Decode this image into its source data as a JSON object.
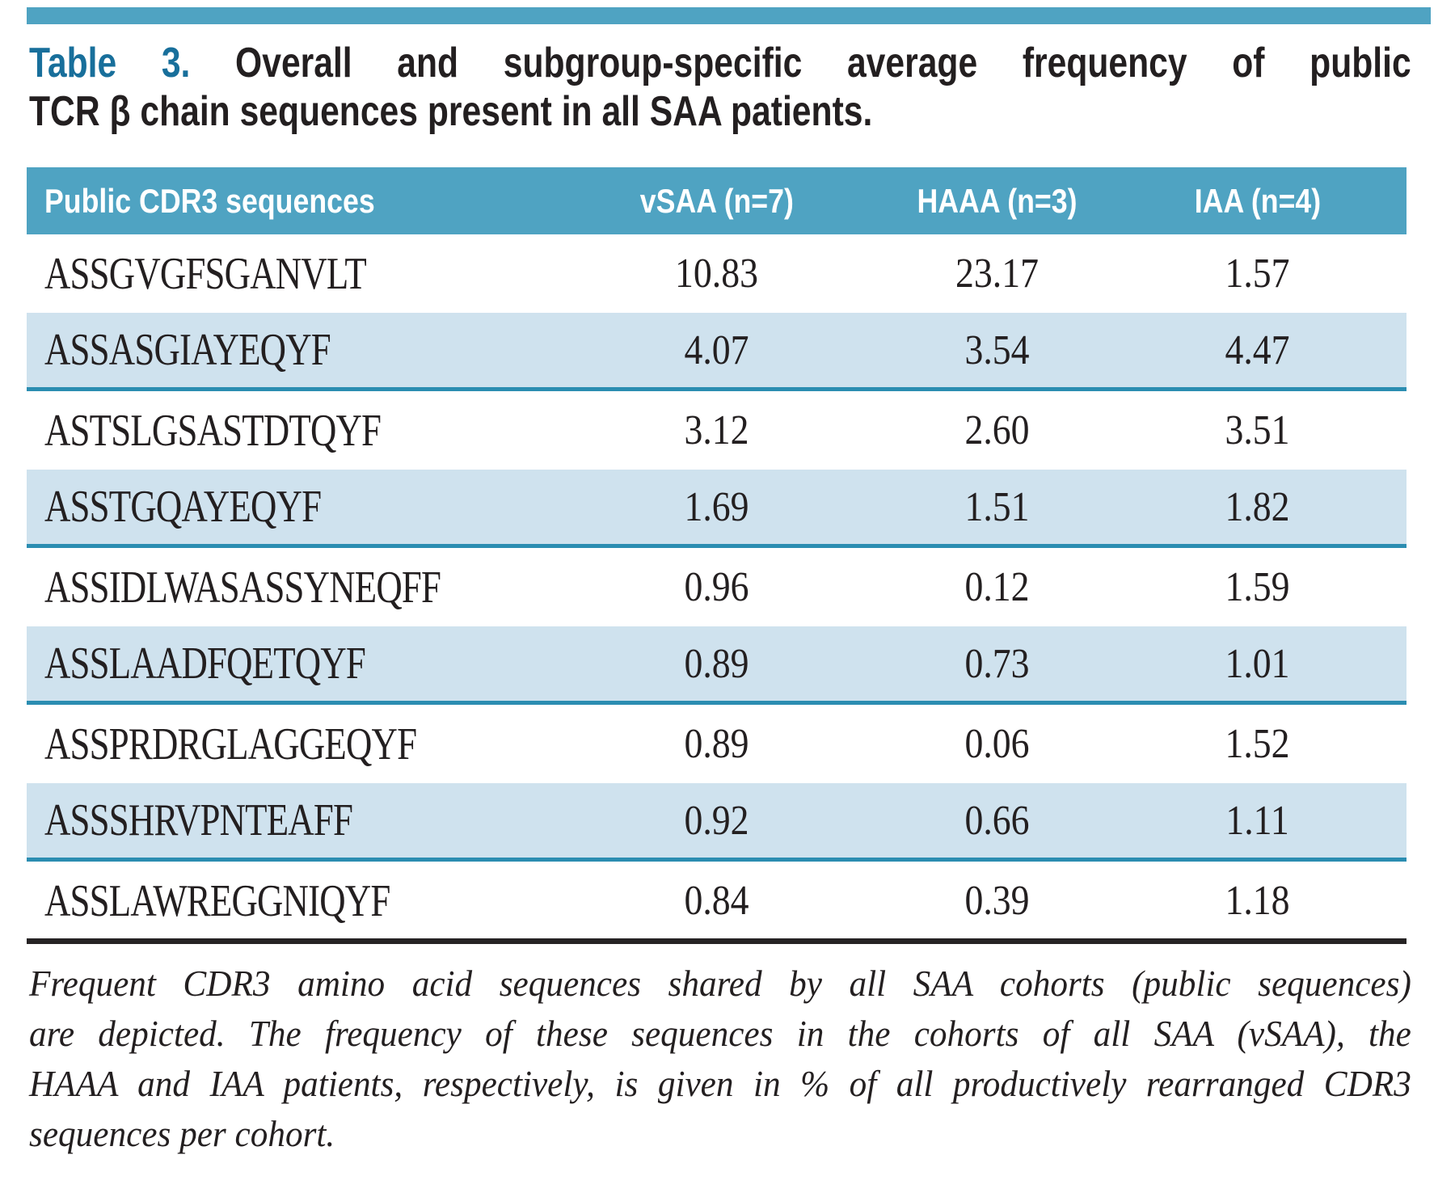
{
  "colors": {
    "accent_teal": "#4fa3c2",
    "shaded_row_blue": "#cfe2ee",
    "shaded_row_border": "#2b8db1",
    "title_prefix_teal": "#186f9b",
    "text_black": "#231f20"
  },
  "title": {
    "prefix": "Table 3.",
    "line1_rest": " Overall and subgroup-specific average frequency of public",
    "line2": "TCR β chain sequences present in all SAA patients."
  },
  "table": {
    "columns": [
      "Public CDR3 sequences",
      "vSAA (n=7)",
      "HAAA (n=3)",
      "IAA (n=4)"
    ],
    "rows": [
      {
        "sequence": "ASSGVGFSGANVLT",
        "vsaa": "10.83",
        "haaa": "23.17",
        "iaa": "1.57"
      },
      {
        "sequence": "ASSASGIAYEQYF",
        "vsaa": "4.07",
        "haaa": "3.54",
        "iaa": "4.47"
      },
      {
        "sequence": "ASTSLGSASTDTQYF",
        "vsaa": "3.12",
        "haaa": "2.60",
        "iaa": "3.51"
      },
      {
        "sequence": "ASSTGQAYEQYF",
        "vsaa": "1.69",
        "haaa": "1.51",
        "iaa": "1.82"
      },
      {
        "sequence": "ASSIDLWASASSYNEQFF",
        "vsaa": "0.96",
        "haaa": "0.12",
        "iaa": "1.59"
      },
      {
        "sequence": "ASSLAADFQETQYF",
        "vsaa": "0.89",
        "haaa": "0.73",
        "iaa": "1.01"
      },
      {
        "sequence": "ASSPRDRGLAGGEQYF",
        "vsaa": "0.89",
        "haaa": "0.06",
        "iaa": "1.52"
      },
      {
        "sequence": "ASSSHRVPNTEAFF",
        "vsaa": "0.92",
        "haaa": "0.66",
        "iaa": "1.11"
      },
      {
        "sequence": "ASSLAWREGGNIQYF",
        "vsaa": "0.84",
        "haaa": "0.39",
        "iaa": "1.18"
      }
    ]
  },
  "footnote": {
    "line1": "Frequent CDR3 amino acid sequences shared by all SAA cohorts (public sequences)",
    "line2": "are depicted. The frequency of these sequences in the cohorts of all SAA (vSAA), the",
    "line3": "HAAA and IAA patients, respectively, is given in % of all productively rearranged CDR3",
    "line4": "sequences per cohort."
  }
}
